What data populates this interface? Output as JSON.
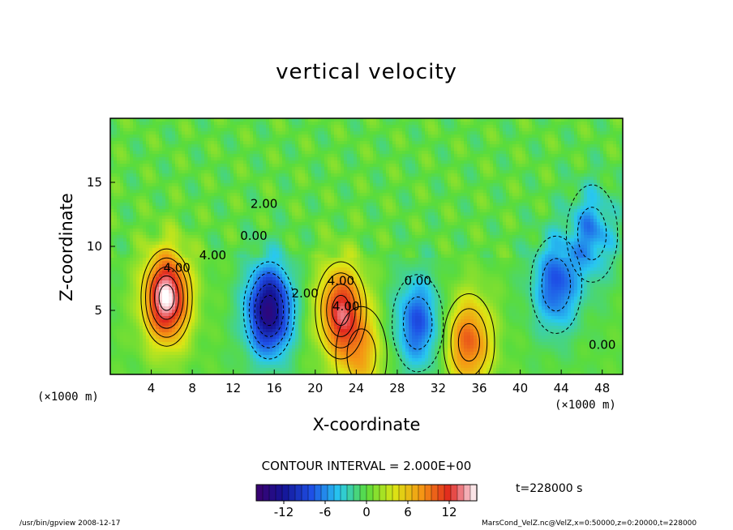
{
  "chart_data": {
    "type": "heatmap",
    "title": "vertical velocity",
    "xlabel": "X-coordinate",
    "ylabel": "Z-coordinate",
    "x_unit": "(×1000 m)",
    "xlim": [
      0,
      50
    ],
    "ylim": [
      0,
      20
    ],
    "x_ticks": [
      4,
      8,
      12,
      16,
      20,
      24,
      28,
      32,
      36,
      40,
      44,
      48
    ],
    "y_ticks": [
      5,
      10,
      15
    ],
    "contour_interval": "CONTOUR INTERVAL = 2.000E+00",
    "contour_labels": [
      "4.00",
      "4.00",
      "4.00",
      "2.00",
      "0.00",
      "0.00",
      "4.00",
      "2.00",
      "0.00"
    ],
    "colorbar": {
      "min": -16,
      "max": 16,
      "ticks": [
        -12,
        -6,
        0,
        6,
        12
      ]
    },
    "features": [
      {
        "x": 5.5,
        "z": 6.0,
        "value": 16
      },
      {
        "x": 22.5,
        "z": 5.0,
        "value": 12
      },
      {
        "x": 35.0,
        "z": 2.5,
        "value": 10
      },
      {
        "x": 15.5,
        "z": 5.0,
        "value": -14
      },
      {
        "x": 30.0,
        "z": 4.0,
        "value": -8
      },
      {
        "x": 43.5,
        "z": 7.0,
        "value": -8
      },
      {
        "x": 47.0,
        "z": 11.0,
        "value": -6
      },
      {
        "x": 24.5,
        "z": 1.5,
        "value": 6
      }
    ]
  },
  "time_label": "t=228000  s",
  "footer": {
    "left": "/usr/bin/gpview  2008-12-17",
    "right": "MarsCond_VelZ.nc@VelZ,x=0:50000,z=0:20000,t=228000"
  }
}
